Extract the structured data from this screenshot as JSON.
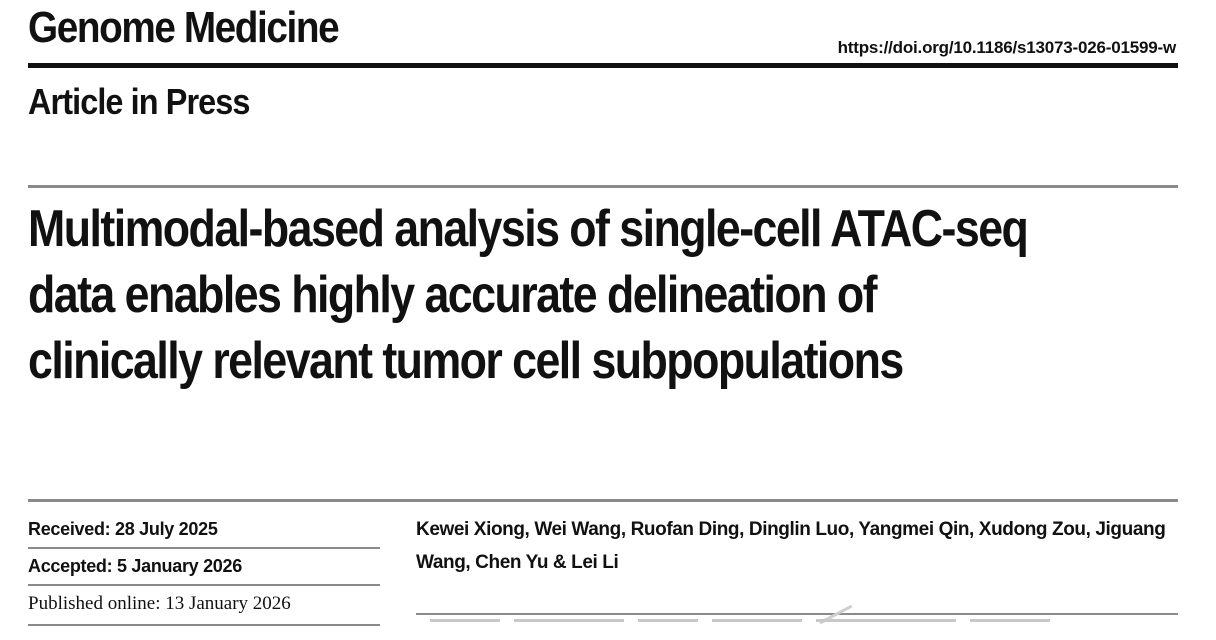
{
  "header": {
    "journal": "Genome Medicine",
    "doi": "https://doi.org/10.1186/s13073-026-01599-w",
    "status": "Article in Press"
  },
  "article": {
    "title": "Multimodal-based analysis of single-cell ATAC-seq data enables highly accurate delineation of clinically relevant tumor cell subpopulations",
    "authors": "Kewei Xiong, Wei Wang, Ruofan Ding, Dinglin Luo, Yangmei Qin, Xudong Zou, Jiguang Wang, Chen Yu & Lei Li"
  },
  "dates": {
    "received": "Received: 28 July 2025",
    "accepted": "Accepted: 5 January 2026",
    "published": "Published online: 13 January 2026"
  }
}
